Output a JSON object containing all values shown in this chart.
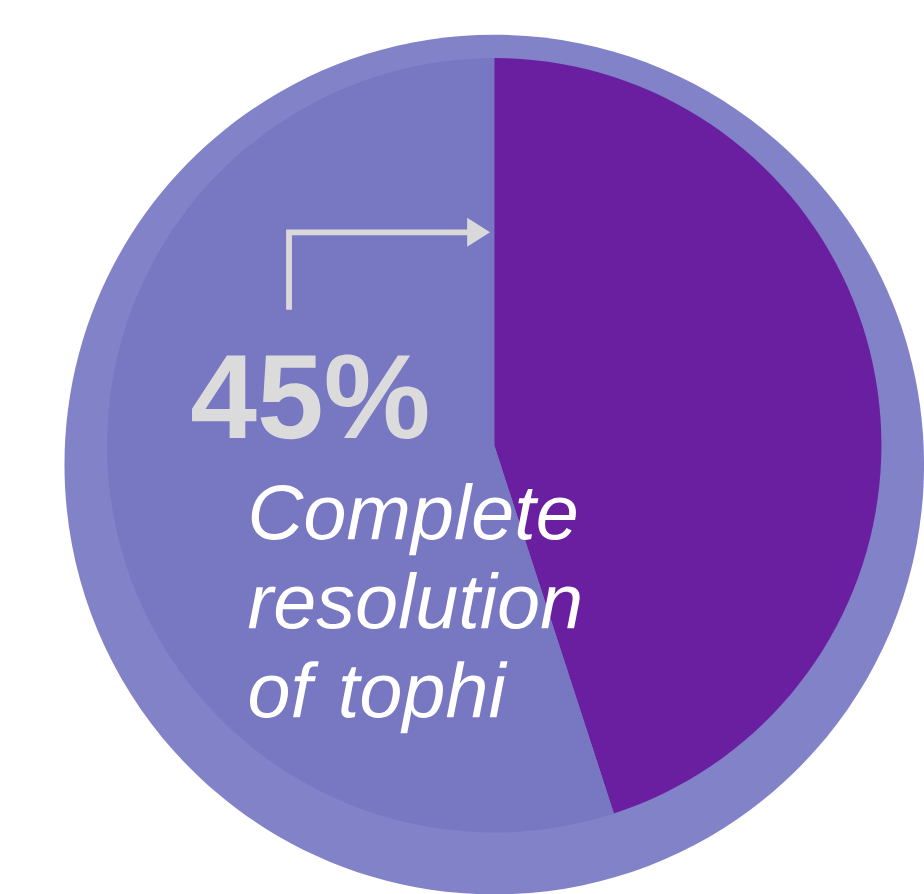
{
  "chart_data": {
    "type": "pie",
    "categories": [
      null,
      null
    ],
    "values": [
      45,
      55
    ],
    "colors": [
      "#6a1fa0",
      "#7877c2"
    ],
    "annotations": [
      "45%",
      "Complete resolution of tophi"
    ]
  }
}
